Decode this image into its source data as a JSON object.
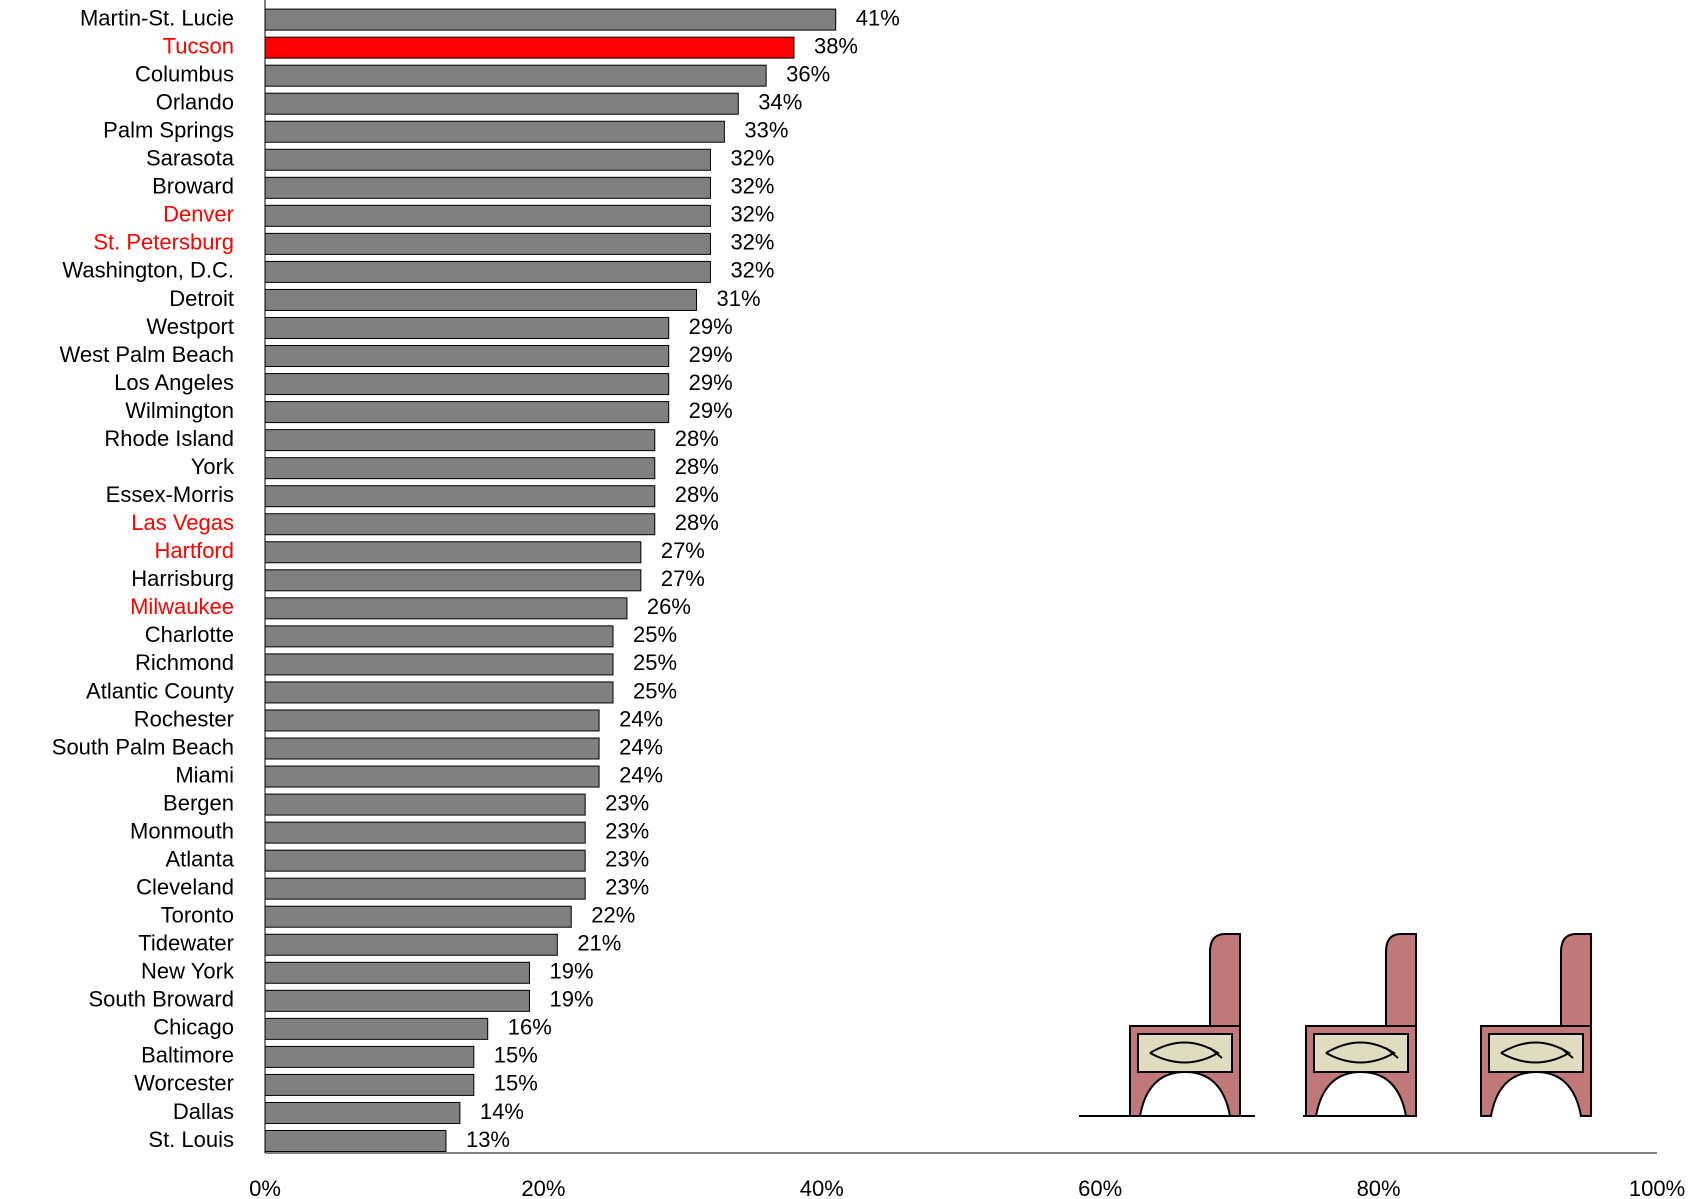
{
  "chart_data": {
    "type": "hbar",
    "categories": [
      "Martin-St. Lucie",
      "Tucson",
      "Columbus",
      "Orlando",
      "Palm Springs",
      "Sarasota",
      "Broward",
      "Denver",
      "St. Petersburg",
      "Washington, D.C.",
      "Detroit",
      "Westport",
      "West Palm Beach",
      "Los Angeles",
      "Wilmington",
      "Rhode Island",
      "York",
      "Essex-Morris",
      "Las Vegas",
      "Hartford",
      "Harrisburg",
      "Milwaukee",
      "Charlotte",
      "Richmond",
      "Atlantic County",
      "Rochester",
      "South Palm Beach",
      "Miami",
      "Bergen",
      "Monmouth",
      "Atlanta",
      "Cleveland",
      "Toronto",
      "Tidewater",
      "New York",
      "South Broward",
      "Chicago",
      "Baltimore",
      "Worcester",
      "Dallas",
      "St. Louis"
    ],
    "category_colors": [
      "#000000",
      "#ff0000",
      "#000000",
      "#000000",
      "#000000",
      "#000000",
      "#000000",
      "#ff0000",
      "#ff0000",
      "#000000",
      "#000000",
      "#000000",
      "#000000",
      "#000000",
      "#000000",
      "#000000",
      "#000000",
      "#000000",
      "#ff0000",
      "#ff0000",
      "#000000",
      "#ff0000",
      "#000000",
      "#000000",
      "#000000",
      "#000000",
      "#000000",
      "#000000",
      "#000000",
      "#000000",
      "#000000",
      "#000000",
      "#000000",
      "#000000",
      "#000000",
      "#000000",
      "#000000",
      "#000000",
      "#000000",
      "#000000",
      "#000000"
    ],
    "values": [
      41,
      38,
      36,
      34,
      33,
      32,
      32,
      32,
      32,
      32,
      31,
      29,
      29,
      29,
      29,
      28,
      28,
      28,
      28,
      27,
      27,
      26,
      25,
      25,
      25,
      24,
      24,
      24,
      23,
      23,
      23,
      23,
      22,
      21,
      19,
      19,
      16,
      15,
      15,
      14,
      13
    ],
    "value_labels": [
      "41%",
      "38%",
      "36%",
      "34%",
      "33%",
      "32%",
      "32%",
      "32%",
      "32%",
      "32%",
      "31%",
      "29%",
      "29%",
      "29%",
      "29%",
      "28%",
      "28%",
      "28%",
      "28%",
      "27%",
      "27%",
      "26%",
      "25%",
      "25%",
      "25%",
      "24%",
      "24%",
      "24%",
      "23%",
      "23%",
      "23%",
      "23%",
      "22%",
      "21%",
      "19%",
      "19%",
      "16%",
      "15%",
      "15%",
      "14%",
      "13%"
    ],
    "colors": [
      "#808080",
      "#ff0000",
      "#808080",
      "#808080",
      "#808080",
      "#808080",
      "#808080",
      "#808080",
      "#808080",
      "#808080",
      "#808080",
      "#808080",
      "#808080",
      "#808080",
      "#808080",
      "#808080",
      "#808080",
      "#808080",
      "#808080",
      "#808080",
      "#808080",
      "#808080",
      "#808080",
      "#808080",
      "#808080",
      "#808080",
      "#808080",
      "#808080",
      "#808080",
      "#808080",
      "#808080",
      "#808080",
      "#808080",
      "#808080",
      "#808080",
      "#808080",
      "#808080",
      "#808080",
      "#808080",
      "#808080",
      "#808080"
    ],
    "xlim": [
      0,
      100
    ],
    "xticks": [
      {
        "value": 0,
        "label": "0%"
      },
      {
        "value": 20,
        "label": "20%"
      },
      {
        "value": 40,
        "label": "40%"
      },
      {
        "value": 60,
        "label": "60%"
      },
      {
        "value": 80,
        "label": "80%"
      },
      {
        "value": 100,
        "label": "100%"
      }
    ],
    "grid": false
  }
}
